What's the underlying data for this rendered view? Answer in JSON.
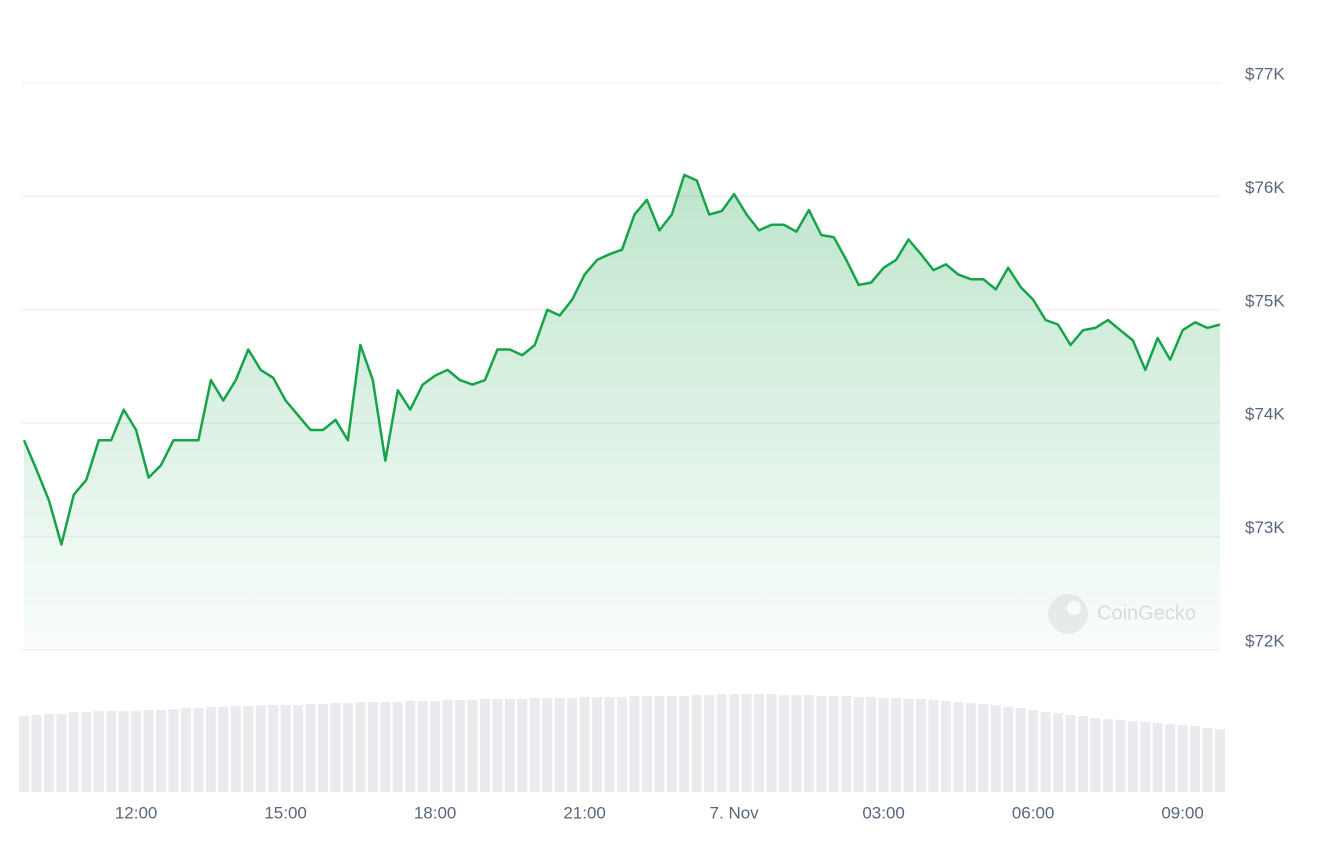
{
  "chart_data": {
    "type": "line",
    "categories": [
      null,
      null,
      null,
      null,
      null,
      null,
      null,
      null,
      null,
      "12:00",
      null,
      null,
      null,
      null,
      null,
      null,
      null,
      null,
      null,
      null,
      null,
      "15:00",
      null,
      null,
      null,
      null,
      null,
      null,
      null,
      null,
      null,
      null,
      null,
      "18:00",
      null,
      null,
      null,
      null,
      null,
      null,
      null,
      null,
      null,
      null,
      null,
      "21:00",
      null,
      null,
      null,
      null,
      null,
      null,
      null,
      null,
      null,
      null,
      null,
      "7. Nov",
      null,
      null,
      null,
      null,
      null,
      null,
      null,
      null,
      null,
      null,
      null,
      "03:00",
      null,
      null,
      null,
      null,
      null,
      null,
      null,
      null,
      null,
      null,
      null,
      "06:00",
      null,
      null,
      null,
      null,
      null,
      null,
      null,
      null,
      null,
      null,
      null,
      "09:00",
      null,
      null,
      null
    ],
    "values": [
      73850,
      73590,
      73320,
      72930,
      73370,
      73500,
      73850,
      73850,
      74120,
      73940,
      73520,
      73630,
      73850,
      73850,
      73850,
      74380,
      74200,
      74380,
      74650,
      74470,
      74400,
      74200,
      74070,
      73940,
      73940,
      74030,
      73850,
      74690,
      74380,
      73670,
      74290,
      74120,
      74340,
      74420,
      74470,
      74380,
      74340,
      74380,
      74650,
      74650,
      74600,
      74690,
      75000,
      74950,
      75090,
      75310,
      75440,
      75490,
      75530,
      75840,
      75970,
      75700,
      75840,
      76190,
      76140,
      75840,
      75870,
      76020,
      75840,
      75700,
      75750,
      75750,
      75690,
      75880,
      75660,
      75640,
      75440,
      75220,
      75240,
      75370,
      75440,
      75620,
      75490,
      75350,
      75400,
      75310,
      75270,
      75270,
      75180,
      75370,
      75200,
      75090,
      74910,
      74870,
      74690,
      74820,
      74840,
      74910,
      74820,
      74730,
      74470,
      74750,
      74560,
      74820,
      74890,
      74840,
      74870
    ],
    "volume": [
      76,
      77,
      78,
      78,
      80,
      80,
      81,
      81,
      81,
      81,
      82,
      82,
      83,
      84,
      84,
      85,
      85,
      86,
      86,
      87,
      87,
      87,
      87,
      88,
      88,
      89,
      89,
      90,
      90,
      90,
      90,
      91,
      91,
      91,
      92,
      92,
      92,
      93,
      93,
      93,
      93,
      94,
      94,
      94,
      94,
      95,
      95,
      95,
      95,
      96,
      96,
      96,
      96,
      96,
      97,
      97,
      98,
      98,
      98,
      98,
      98,
      97,
      97,
      97,
      96,
      96,
      96,
      95,
      95,
      94,
      94,
      93,
      93,
      92,
      91,
      90,
      89,
      88,
      87,
      85,
      84,
      82,
      80,
      79,
      77,
      76,
      74,
      73,
      72,
      71,
      70,
      69,
      68,
      67,
      66,
      64,
      63
    ],
    "color": "#16a34a",
    "ylim": [
      72000,
      77000
    ],
    "yticks": [
      {
        "value": 72000,
        "label": "$72K"
      },
      {
        "value": 73000,
        "label": "$73K"
      },
      {
        "value": 74000,
        "label": "$74K"
      },
      {
        "value": 75000,
        "label": "$75K"
      },
      {
        "value": 76000,
        "label": "$76K"
      },
      {
        "value": 77000,
        "label": "$77K"
      }
    ],
    "grid": true,
    "watermark": "CoinGecko"
  }
}
